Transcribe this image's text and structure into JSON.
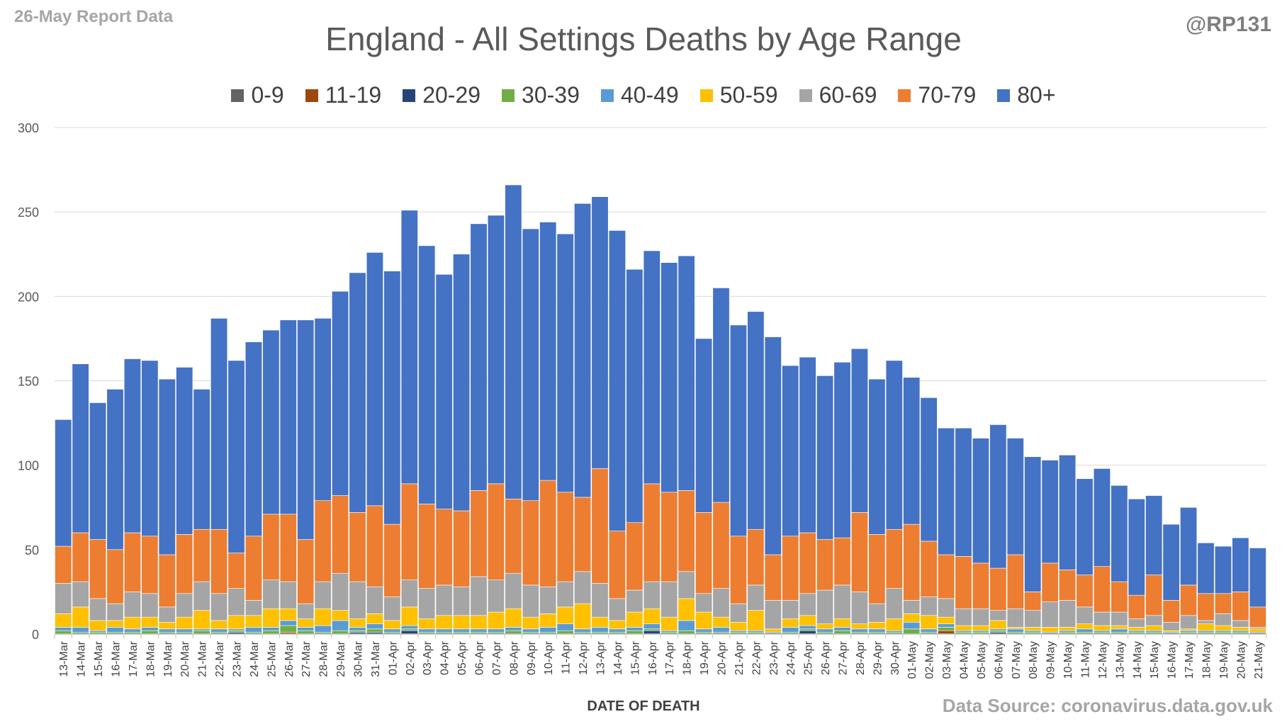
{
  "header": {
    "report_label": "26-May Report Data",
    "author": "@RP131"
  },
  "footer": {
    "source": "Data Source: coronavirus.data.gov.uk"
  },
  "colors": {
    "0-9": "#636363",
    "11-19": "#9e480e",
    "20-29": "#264478",
    "30-39": "#70ad47",
    "40-49": "#5b9bd5",
    "50-59": "#ffc000",
    "60-69": "#a5a5a5",
    "70-79": "#ed7d31",
    "80+": "#4472c4",
    "gridline": "#d9d9d9",
    "axis": "#bfbfbf"
  },
  "chart_data": {
    "type": "bar",
    "stacked": true,
    "title": "England - All Settings Deaths by Age Range",
    "xlabel": "DATE OF DEATH",
    "ylabel": "",
    "ylim": [
      0,
      300
    ],
    "yticks": [
      0,
      50,
      100,
      150,
      200,
      250,
      300
    ],
    "grid": true,
    "legend_position": "top",
    "categories": [
      "13-Mar",
      "14-Mar",
      "15-Mar",
      "16-Mar",
      "17-Mar",
      "18-Mar",
      "19-Mar",
      "20-Mar",
      "21-Mar",
      "22-Mar",
      "23-Mar",
      "24-Mar",
      "25-Mar",
      "26-Mar",
      "27-Mar",
      "28-Mar",
      "29-Mar",
      "30-Mar",
      "31-Mar",
      "01-Apr",
      "02-Apr",
      "03-Apr",
      "04-Apr",
      "05-Apr",
      "06-Apr",
      "07-Apr",
      "08-Apr",
      "09-Apr",
      "10-Apr",
      "11-Apr",
      "12-Apr",
      "13-Apr",
      "14-Apr",
      "15-Apr",
      "16-Apr",
      "17-Apr",
      "18-Apr",
      "19-Apr",
      "20-Apr",
      "21-Apr",
      "22-Apr",
      "23-Apr",
      "24-Apr",
      "25-Apr",
      "26-Apr",
      "27-Apr",
      "28-Apr",
      "29-Apr",
      "30-Apr",
      "01-May",
      "02-May",
      "03-May",
      "04-May",
      "05-May",
      "06-May",
      "07-May",
      "08-May",
      "09-May",
      "10-May",
      "11-May",
      "12-May",
      "13-May",
      "14-May",
      "15-May",
      "16-May",
      "17-May",
      "18-May",
      "19-May",
      "20-May",
      "21-May"
    ],
    "series": [
      {
        "name": "0-9",
        "values": [
          0,
          0,
          0,
          0,
          0,
          0,
          0,
          0,
          0,
          0,
          0,
          0,
          0,
          0,
          0,
          0,
          0,
          0,
          0,
          0,
          0,
          0,
          0,
          0,
          0,
          0,
          0,
          0,
          0,
          0,
          0,
          0,
          0,
          0,
          0,
          0,
          0,
          0,
          0,
          0,
          0,
          0,
          0,
          0,
          0,
          0,
          0,
          0,
          0,
          0,
          0,
          0,
          0,
          0,
          0,
          0,
          0,
          0,
          0,
          0,
          0,
          0,
          0,
          0,
          0,
          0,
          0,
          0,
          0,
          0
        ]
      },
      {
        "name": "11-19",
        "values": [
          0,
          0,
          0,
          0,
          0,
          0,
          0,
          0,
          0,
          0,
          0,
          0,
          0,
          1,
          0,
          0,
          0,
          0,
          0,
          0,
          0,
          0,
          0,
          0,
          0,
          0,
          0,
          0,
          0,
          0,
          0,
          0,
          0,
          0,
          0,
          0,
          0,
          0,
          0,
          0,
          0,
          0,
          0,
          0,
          0,
          0,
          0,
          0,
          0,
          0,
          0,
          2,
          0,
          0,
          0,
          0,
          0,
          0,
          0,
          0,
          0,
          0,
          0,
          0,
          0,
          0,
          0,
          0,
          0,
          0
        ]
      },
      {
        "name": "20-29",
        "values": [
          0,
          0,
          0,
          0,
          0,
          0,
          0,
          0,
          0,
          0,
          1,
          0,
          0,
          0,
          0,
          0,
          0,
          1,
          1,
          0,
          2,
          0,
          0,
          0,
          0,
          0,
          0,
          0,
          0,
          0,
          0,
          0,
          0,
          0,
          2,
          0,
          0,
          0,
          0,
          0,
          0,
          0,
          0,
          2,
          0,
          0,
          0,
          0,
          0,
          0,
          0,
          0,
          0,
          0,
          1,
          0,
          0,
          0,
          0,
          0,
          0,
          0,
          0,
          0,
          0,
          0,
          0,
          0,
          0,
          0
        ]
      },
      {
        "name": "30-39",
        "values": [
          2,
          1,
          1,
          1,
          1,
          2,
          1,
          1,
          2,
          1,
          1,
          1,
          2,
          4,
          2,
          1,
          2,
          1,
          2,
          1,
          1,
          1,
          1,
          1,
          1,
          1,
          2,
          1,
          1,
          2,
          1,
          1,
          1,
          2,
          1,
          1,
          2,
          1,
          1,
          1,
          1,
          0,
          1,
          1,
          1,
          2,
          1,
          1,
          1,
          3,
          1,
          2,
          1,
          1,
          1,
          1,
          1,
          0,
          1,
          1,
          1,
          1,
          1,
          1,
          0,
          1,
          1,
          1,
          1,
          0
        ]
      },
      {
        "name": "40-49",
        "values": [
          2,
          3,
          1,
          3,
          2,
          2,
          2,
          2,
          1,
          2,
          1,
          3,
          2,
          3,
          2,
          4,
          6,
          2,
          3,
          2,
          2,
          2,
          2,
          2,
          2,
          2,
          2,
          2,
          3,
          4,
          2,
          3,
          2,
          2,
          3,
          1,
          6,
          2,
          3,
          1,
          1,
          1,
          3,
          2,
          2,
          2,
          2,
          2,
          1,
          4,
          2,
          2,
          1,
          1,
          1,
          2,
          1,
          1,
          1,
          2,
          1,
          2,
          1,
          1,
          1,
          1,
          1,
          1,
          1,
          1
        ]
      },
      {
        "name": "50-59",
        "values": [
          8,
          12,
          6,
          4,
          7,
          6,
          4,
          7,
          11,
          5,
          8,
          7,
          11,
          7,
          5,
          10,
          6,
          5,
          6,
          5,
          11,
          6,
          8,
          8,
          8,
          10,
          11,
          7,
          8,
          10,
          15,
          6,
          5,
          9,
          9,
          8,
          13,
          10,
          6,
          5,
          12,
          2,
          5,
          6,
          3,
          5,
          3,
          4,
          7,
          5,
          8,
          4,
          3,
          3,
          5,
          1,
          2,
          3,
          2,
          3,
          3,
          2,
          2,
          3,
          1,
          1,
          4,
          3,
          2,
          2
        ]
      },
      {
        "name": "60-69",
        "values": [
          18,
          15,
          13,
          10,
          15,
          14,
          9,
          14,
          17,
          16,
          16,
          9,
          17,
          16,
          9,
          16,
          22,
          22,
          16,
          14,
          16,
          18,
          18,
          17,
          23,
          19,
          21,
          19,
          16,
          15,
          19,
          20,
          13,
          13,
          16,
          21,
          16,
          11,
          17,
          11,
          15,
          17,
          11,
          13,
          20,
          20,
          19,
          11,
          18,
          8,
          11,
          11,
          10,
          10,
          6,
          11,
          10,
          15,
          16,
          10,
          8,
          8,
          5,
          6,
          5,
          8,
          2,
          7,
          4,
          1
        ]
      },
      {
        "name": "70-79",
        "values": [
          22,
          29,
          35,
          32,
          35,
          34,
          31,
          35,
          31,
          38,
          21,
          38,
          39,
          40,
          38,
          48,
          46,
          41,
          48,
          43,
          57,
          50,
          45,
          45,
          51,
          57,
          44,
          50,
          63,
          53,
          44,
          68,
          40,
          40,
          58,
          53,
          48,
          48,
          51,
          40,
          33,
          27,
          38,
          36,
          30,
          28,
          47,
          41,
          35,
          45,
          33,
          26,
          31,
          27,
          25,
          32,
          11,
          23,
          18,
          19,
          27,
          18,
          14,
          24,
          13,
          18,
          16,
          12,
          17,
          12
        ]
      },
      {
        "name": "80+",
        "values": [
          75,
          100,
          81,
          95,
          103,
          104,
          104,
          99,
          83,
          125,
          114,
          115,
          109,
          115,
          130,
          108,
          121,
          142,
          150,
          150,
          162,
          153,
          139,
          152,
          158,
          159,
          186,
          161,
          153,
          153,
          174,
          161,
          178,
          150,
          138,
          136,
          139,
          103,
          127,
          125,
          129,
          129,
          101,
          104,
          97,
          104,
          97,
          92,
          100,
          87,
          85,
          75,
          76,
          74,
          85,
          69,
          80,
          61,
          68,
          57,
          58,
          57,
          57,
          47,
          45,
          46,
          30,
          28,
          32,
          35
        ]
      }
    ]
  }
}
